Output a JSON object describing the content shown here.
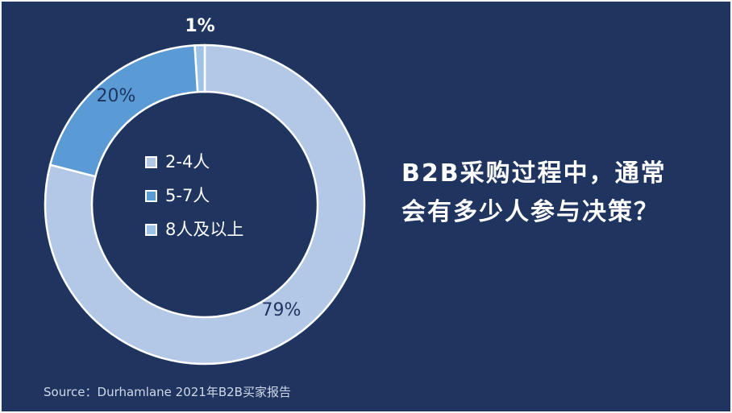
{
  "chart_data": {
    "type": "pie",
    "categories": [
      "2-4人",
      "5-7人",
      "8人及以上"
    ],
    "values": [
      79,
      20,
      1
    ],
    "data_labels": [
      "79%",
      "20%",
      "1%"
    ],
    "colors": [
      "#b3c7e6",
      "#5b9bd5",
      "#9dc3e6"
    ],
    "legend_placement": "center"
  },
  "title": {
    "line1": "B2B采购过程中，通常",
    "line2": "会有多少人参与决策？"
  },
  "source": "Source：Durhamlane 2021年B2B买家报告",
  "colors": {
    "background": "#1f3560",
    "slice_border": "#ffffff",
    "label_dark": "#1f3560",
    "label_light": "#ffffff"
  }
}
